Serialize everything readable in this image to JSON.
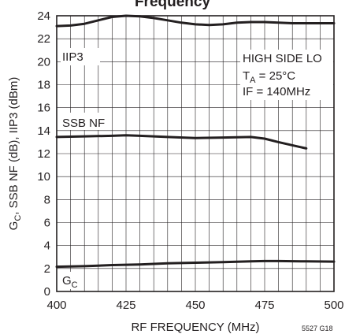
{
  "chart_data": {
    "type": "line",
    "title_fragment": "Frequency",
    "xlabel": "RF FREQUENCY (MHz)",
    "ylabel": {
      "pre": "G",
      "sub": "C",
      "post": ", SSB NF (dB), IIP3 (dBm)"
    },
    "xlim": [
      400,
      500
    ],
    "ylim": [
      0,
      24
    ],
    "xticks": [
      400,
      425,
      450,
      475,
      500
    ],
    "yticks": [
      0,
      2,
      4,
      6,
      8,
      10,
      12,
      14,
      16,
      18,
      20,
      22,
      24
    ],
    "x_minor_step": 5,
    "grid": true,
    "series": [
      {
        "name": "IIP3",
        "x": [
          400,
          405,
          410,
          415,
          420,
          425,
          430,
          435,
          440,
          445,
          450,
          455,
          460,
          465,
          470,
          475,
          480,
          485,
          490,
          495,
          500
        ],
        "values": [
          23.1,
          23.15,
          23.3,
          23.6,
          23.9,
          24.0,
          23.95,
          23.8,
          23.6,
          23.4,
          23.25,
          23.2,
          23.25,
          23.4,
          23.45,
          23.45,
          23.4,
          23.35,
          23.35,
          23.35,
          23.35
        ]
      },
      {
        "name": "SSB NF",
        "x": [
          400,
          410,
          420,
          425,
          430,
          440,
          450,
          460,
          470,
          475,
          480,
          490
        ],
        "values": [
          13.45,
          13.5,
          13.55,
          13.6,
          13.55,
          13.45,
          13.35,
          13.4,
          13.45,
          13.3,
          13.0,
          12.45
        ]
      },
      {
        "name": "G_C",
        "x": [
          400,
          410,
          420,
          430,
          440,
          450,
          460,
          470,
          475,
          480,
          490,
          500
        ],
        "values": [
          2.15,
          2.2,
          2.3,
          2.35,
          2.45,
          2.5,
          2.55,
          2.62,
          2.65,
          2.65,
          2.62,
          2.6
        ]
      }
    ],
    "series_labels": {
      "iip3": "IIP3",
      "ssbnf": "SSB NF",
      "gc": {
        "main": "G",
        "sub": "C"
      }
    },
    "conditions": {
      "line1": "HIGH SIDE LO",
      "line2": {
        "pre": "T",
        "sub": "A",
        "post": " = 25°C"
      },
      "line3": "IF = 140MHz"
    },
    "figure_id": "5527 G18"
  }
}
